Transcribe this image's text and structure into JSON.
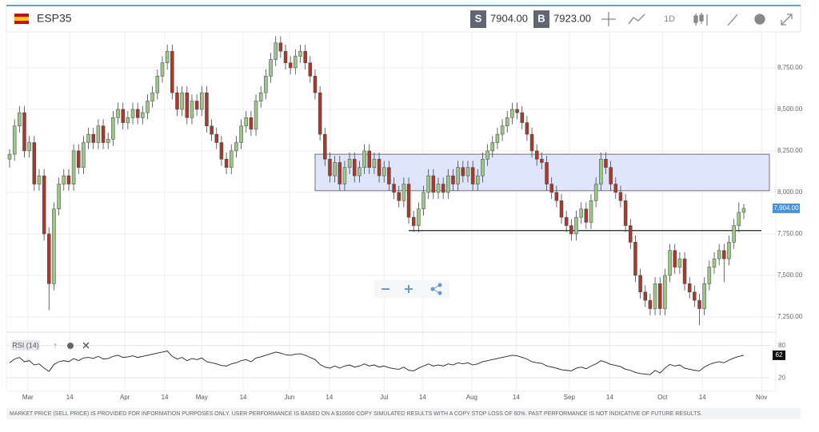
{
  "header": {
    "symbol": "ESP35",
    "sell_tag": "S",
    "sell_price": "7904.00",
    "buy_tag": "B",
    "buy_price": "7923.00",
    "timeframe": "1D"
  },
  "chart_data": {
    "type": "candlestick",
    "ylim": [
      7163,
      8942
    ],
    "xlim": [
      -0.65,
      154.2
    ],
    "yticks": [
      {
        "value": 7250,
        "label": "7,250.00"
      },
      {
        "value": 7500,
        "label": "7,500.00"
      },
      {
        "value": 7750,
        "label": "7,750.00"
      },
      {
        "value": 8000,
        "label": "8,000.00"
      },
      {
        "value": 8250,
        "label": "8,250.00"
      },
      {
        "value": 8500,
        "label": "8,500.00"
      },
      {
        "value": 8750,
        "label": "8,750.00"
      }
    ],
    "xticks": [
      {
        "value": 3.7,
        "label": "Mar"
      },
      {
        "value": 12.2,
        "label": "14"
      },
      {
        "value": 23.4,
        "label": "Apr"
      },
      {
        "value": 31.5,
        "label": "14"
      },
      {
        "value": 39,
        "label": "May"
      },
      {
        "value": 47.4,
        "label": "14"
      },
      {
        "value": 56.8,
        "label": "Jun"
      },
      {
        "value": 64.9,
        "label": "14"
      },
      {
        "value": 76,
        "label": "Jul"
      },
      {
        "value": 83.8,
        "label": "14"
      },
      {
        "value": 93.8,
        "label": "Aug"
      },
      {
        "value": 102.8,
        "label": "14"
      },
      {
        "value": 113.6,
        "label": "Sep"
      },
      {
        "value": 121.8,
        "label": "14"
      },
      {
        "value": 132.5,
        "label": "Oct"
      },
      {
        "value": 140.6,
        "label": "14"
      },
      {
        "value": 152.6,
        "label": "Nov"
      }
    ],
    "grid": true,
    "up_color": "#9cc58a",
    "down_color": "#a8392c",
    "last_price": {
      "value": 7904,
      "label": "7,904.00"
    },
    "zone": {
      "from": 62,
      "low": 8010,
      "high": 8230
    },
    "level": {
      "from": 81,
      "value": 7770
    },
    "candles": [
      [
        8200,
        8260,
        8150,
        8230
      ],
      [
        8230,
        8440,
        8190,
        8400
      ],
      [
        8400,
        8520,
        8360,
        8480
      ],
      [
        8480,
        8520,
        8210,
        8250
      ],
      [
        8250,
        8340,
        8210,
        8300
      ],
      [
        8300,
        8340,
        8010,
        8050
      ],
      [
        8050,
        8140,
        8010,
        8100
      ],
      [
        8100,
        8140,
        7710,
        7750
      ],
      [
        7750,
        7790,
        7290,
        7450
      ],
      [
        7450,
        7940,
        7410,
        7900
      ],
      [
        7900,
        8090,
        7860,
        8050
      ],
      [
        8050,
        8140,
        8010,
        8100
      ],
      [
        8100,
        8140,
        8010,
        8050
      ],
      [
        8050,
        8290,
        8010,
        8250
      ],
      [
        8250,
        8290,
        8110,
        8150
      ],
      [
        8150,
        8340,
        8110,
        8300
      ],
      [
        8300,
        8390,
        8260,
        8350
      ],
      [
        8350,
        8390,
        8260,
        8300
      ],
      [
        8300,
        8440,
        8260,
        8400
      ],
      [
        8400,
        8440,
        8260,
        8300
      ],
      [
        8300,
        8360,
        8260,
        8320
      ],
      [
        8320,
        8490,
        8280,
        8450
      ],
      [
        8450,
        8540,
        8410,
        8500
      ],
      [
        8500,
        8540,
        8380,
        8420
      ],
      [
        8420,
        8490,
        8380,
        8450
      ],
      [
        8450,
        8540,
        8410,
        8500
      ],
      [
        8500,
        8540,
        8410,
        8450
      ],
      [
        8450,
        8520,
        8410,
        8480
      ],
      [
        8480,
        8590,
        8440,
        8550
      ],
      [
        8550,
        8640,
        8510,
        8600
      ],
      [
        8600,
        8740,
        8560,
        8700
      ],
      [
        8700,
        8820,
        8660,
        8780
      ],
      [
        8780,
        8890,
        8740,
        8850
      ],
      [
        8850,
        8890,
        8560,
        8600
      ],
      [
        8600,
        8640,
        8460,
        8500
      ],
      [
        8500,
        8640,
        8460,
        8600
      ],
      [
        8600,
        8640,
        8410,
        8450
      ],
      [
        8450,
        8590,
        8410,
        8550
      ],
      [
        8550,
        8590,
        8460,
        8500
      ],
      [
        8500,
        8640,
        8460,
        8600
      ],
      [
        8600,
        8640,
        8360,
        8400
      ],
      [
        8400,
        8440,
        8310,
        8350
      ],
      [
        8350,
        8390,
        8260,
        8300
      ],
      [
        8300,
        8340,
        8160,
        8200
      ],
      [
        8200,
        8240,
        8110,
        8150
      ],
      [
        8150,
        8290,
        8110,
        8250
      ],
      [
        8250,
        8340,
        8210,
        8300
      ],
      [
        8300,
        8440,
        8260,
        8400
      ],
      [
        8400,
        8490,
        8360,
        8450
      ],
      [
        8450,
        8490,
        8340,
        8380
      ],
      [
        8380,
        8590,
        8340,
        8550
      ],
      [
        8550,
        8640,
        8510,
        8600
      ],
      [
        8600,
        8740,
        8560,
        8700
      ],
      [
        8700,
        8840,
        8660,
        8800
      ],
      [
        8800,
        8940,
        8760,
        8900
      ],
      [
        8900,
        8940,
        8810,
        8850
      ],
      [
        8850,
        8890,
        8740,
        8780
      ],
      [
        8780,
        8820,
        8710,
        8750
      ],
      [
        8750,
        8860,
        8710,
        8820
      ],
      [
        8820,
        8890,
        8780,
        8850
      ],
      [
        8850,
        8890,
        8740,
        8780
      ],
      [
        8780,
        8820,
        8660,
        8700
      ],
      [
        8700,
        8740,
        8560,
        8600
      ],
      [
        8600,
        8640,
        8310,
        8350
      ],
      [
        8350,
        8390,
        8160,
        8200
      ],
      [
        8200,
        8240,
        8060,
        8100
      ],
      [
        8100,
        8220,
        8060,
        8180
      ],
      [
        8180,
        8220,
        8010,
        8050
      ],
      [
        8050,
        8190,
        8010,
        8150
      ],
      [
        8150,
        8240,
        8110,
        8200
      ],
      [
        8200,
        8240,
        8060,
        8100
      ],
      [
        8100,
        8190,
        8060,
        8150
      ],
      [
        8150,
        8290,
        8110,
        8250
      ],
      [
        8250,
        8290,
        8110,
        8150
      ],
      [
        8150,
        8240,
        8110,
        8200
      ],
      [
        8200,
        8240,
        8060,
        8100
      ],
      [
        8100,
        8190,
        8060,
        8150
      ],
      [
        8150,
        8190,
        8010,
        8050
      ],
      [
        8050,
        8090,
        7960,
        8000
      ],
      [
        8000,
        8040,
        7910,
        7950
      ],
      [
        7950,
        8090,
        7910,
        8050
      ],
      [
        8050,
        8090,
        7810,
        7850
      ],
      [
        7850,
        7890,
        7760,
        7800
      ],
      [
        7800,
        7940,
        7760,
        7900
      ],
      [
        7900,
        8040,
        7860,
        8000
      ],
      [
        8000,
        8140,
        7960,
        8100
      ],
      [
        8100,
        8140,
        7960,
        8000
      ],
      [
        8000,
        8090,
        7960,
        8050
      ],
      [
        8050,
        8090,
        7960,
        8000
      ],
      [
        8000,
        8140,
        7960,
        8100
      ],
      [
        8100,
        8140,
        8010,
        8050
      ],
      [
        8050,
        8190,
        8010,
        8150
      ],
      [
        8150,
        8190,
        8060,
        8100
      ],
      [
        8100,
        8190,
        8060,
        8150
      ],
      [
        8150,
        8190,
        8010,
        8050
      ],
      [
        8050,
        8140,
        8010,
        8100
      ],
      [
        8100,
        8240,
        8060,
        8200
      ],
      [
        8200,
        8290,
        8160,
        8250
      ],
      [
        8250,
        8340,
        8210,
        8300
      ],
      [
        8300,
        8390,
        8260,
        8350
      ],
      [
        8350,
        8440,
        8310,
        8400
      ],
      [
        8400,
        8490,
        8360,
        8450
      ],
      [
        8450,
        8540,
        8410,
        8500
      ],
      [
        8500,
        8540,
        8440,
        8480
      ],
      [
        8480,
        8520,
        8380,
        8420
      ],
      [
        8420,
        8460,
        8310,
        8350
      ],
      [
        8350,
        8390,
        8210,
        8250
      ],
      [
        8250,
        8290,
        8160,
        8200
      ],
      [
        8200,
        8240,
        8140,
        8180
      ],
      [
        8180,
        8220,
        8010,
        8050
      ],
      [
        8050,
        8090,
        7960,
        8000
      ],
      [
        8000,
        8040,
        7910,
        7950
      ],
      [
        7950,
        7990,
        7810,
        7850
      ],
      [
        7850,
        7890,
        7760,
        7800
      ],
      [
        7800,
        7840,
        7710,
        7750
      ],
      [
        7750,
        7890,
        7710,
        7850
      ],
      [
        7850,
        7940,
        7810,
        7900
      ],
      [
        7900,
        7940,
        7780,
        7820
      ],
      [
        7820,
        7990,
        7780,
        7950
      ],
      [
        7950,
        8090,
        7910,
        8050
      ],
      [
        8050,
        8240,
        8010,
        8200
      ],
      [
        8200,
        8240,
        8110,
        8150
      ],
      [
        8150,
        8190,
        8010,
        8050
      ],
      [
        8050,
        8090,
        7960,
        8000
      ],
      [
        8000,
        8040,
        7910,
        7950
      ],
      [
        7950,
        7990,
        7760,
        7800
      ],
      [
        7800,
        7840,
        7660,
        7700
      ],
      [
        7700,
        7740,
        7460,
        7500
      ],
      [
        7500,
        7540,
        7360,
        7400
      ],
      [
        7400,
        7440,
        7310,
        7350
      ],
      [
        7350,
        7390,
        7260,
        7300
      ],
      [
        7300,
        7490,
        7260,
        7450
      ],
      [
        7450,
        7490,
        7260,
        7300
      ],
      [
        7300,
        7540,
        7260,
        7500
      ],
      [
        7500,
        7690,
        7460,
        7650
      ],
      [
        7650,
        7690,
        7510,
        7550
      ],
      [
        7550,
        7640,
        7510,
        7600
      ],
      [
        7600,
        7640,
        7410,
        7450
      ],
      [
        7450,
        7490,
        7360,
        7400
      ],
      [
        7400,
        7440,
        7310,
        7350
      ],
      [
        7350,
        7390,
        7200,
        7300
      ],
      [
        7300,
        7490,
        7260,
        7450
      ],
      [
        7450,
        7590,
        7410,
        7550
      ],
      [
        7550,
        7640,
        7510,
        7600
      ],
      [
        7600,
        7690,
        7560,
        7650
      ],
      [
        7650,
        7690,
        7460,
        7600
      ],
      [
        7600,
        7740,
        7560,
        7700
      ],
      [
        7700,
        7840,
        7660,
        7800
      ],
      [
        7800,
        7940,
        7760,
        7880
      ],
      [
        7880,
        7930,
        7840,
        7904
      ]
    ],
    "rsi": {
      "label": "RSI (14)",
      "ylim": [
        -5,
        102
      ],
      "yticks": [
        20,
        80
      ],
      "current": 62,
      "values": [
        48,
        55,
        58,
        50,
        52,
        44,
        46,
        38,
        32,
        45,
        50,
        52,
        50,
        56,
        52,
        57,
        58,
        56,
        60,
        55,
        56,
        60,
        62,
        58,
        59,
        61,
        58,
        60,
        62,
        64,
        66,
        68,
        70,
        60,
        55,
        58,
        52,
        56,
        54,
        57,
        50,
        48,
        46,
        43,
        42,
        46,
        48,
        52,
        54,
        50,
        57,
        59,
        62,
        65,
        68,
        66,
        63,
        62,
        64,
        65,
        62,
        58,
        54,
        45,
        40,
        38,
        42,
        38,
        42,
        44,
        40,
        42,
        46,
        42,
        44,
        40,
        42,
        39,
        37,
        36,
        40,
        34,
        33,
        38,
        42,
        46,
        42,
        44,
        42,
        46,
        44,
        48,
        46,
        48,
        44,
        46,
        50,
        52,
        54,
        56,
        58,
        60,
        62,
        61,
        58,
        55,
        50,
        48,
        47,
        42,
        40,
        38,
        35,
        34,
        33,
        38,
        40,
        37,
        42,
        46,
        52,
        49,
        45,
        43,
        41,
        36,
        34,
        30,
        28,
        27,
        26,
        34,
        29,
        38,
        45,
        42,
        44,
        38,
        36,
        34,
        33,
        40,
        45,
        48,
        50,
        48,
        53,
        57,
        60,
        62
      ]
    }
  },
  "footer": "MARKET PRICE (SELL PRICE) IS PROVIDED FOR INFORMATION PURPOSES ONLY. USER PERFORMANCE IS BASED ON A $10000 COPY SIMULATED RESULTS WITH A COPY STOP LOSS OF 60%. PAST PERFORMANCE IS NOT INDICATIVE OF FUTURE RESULTS."
}
